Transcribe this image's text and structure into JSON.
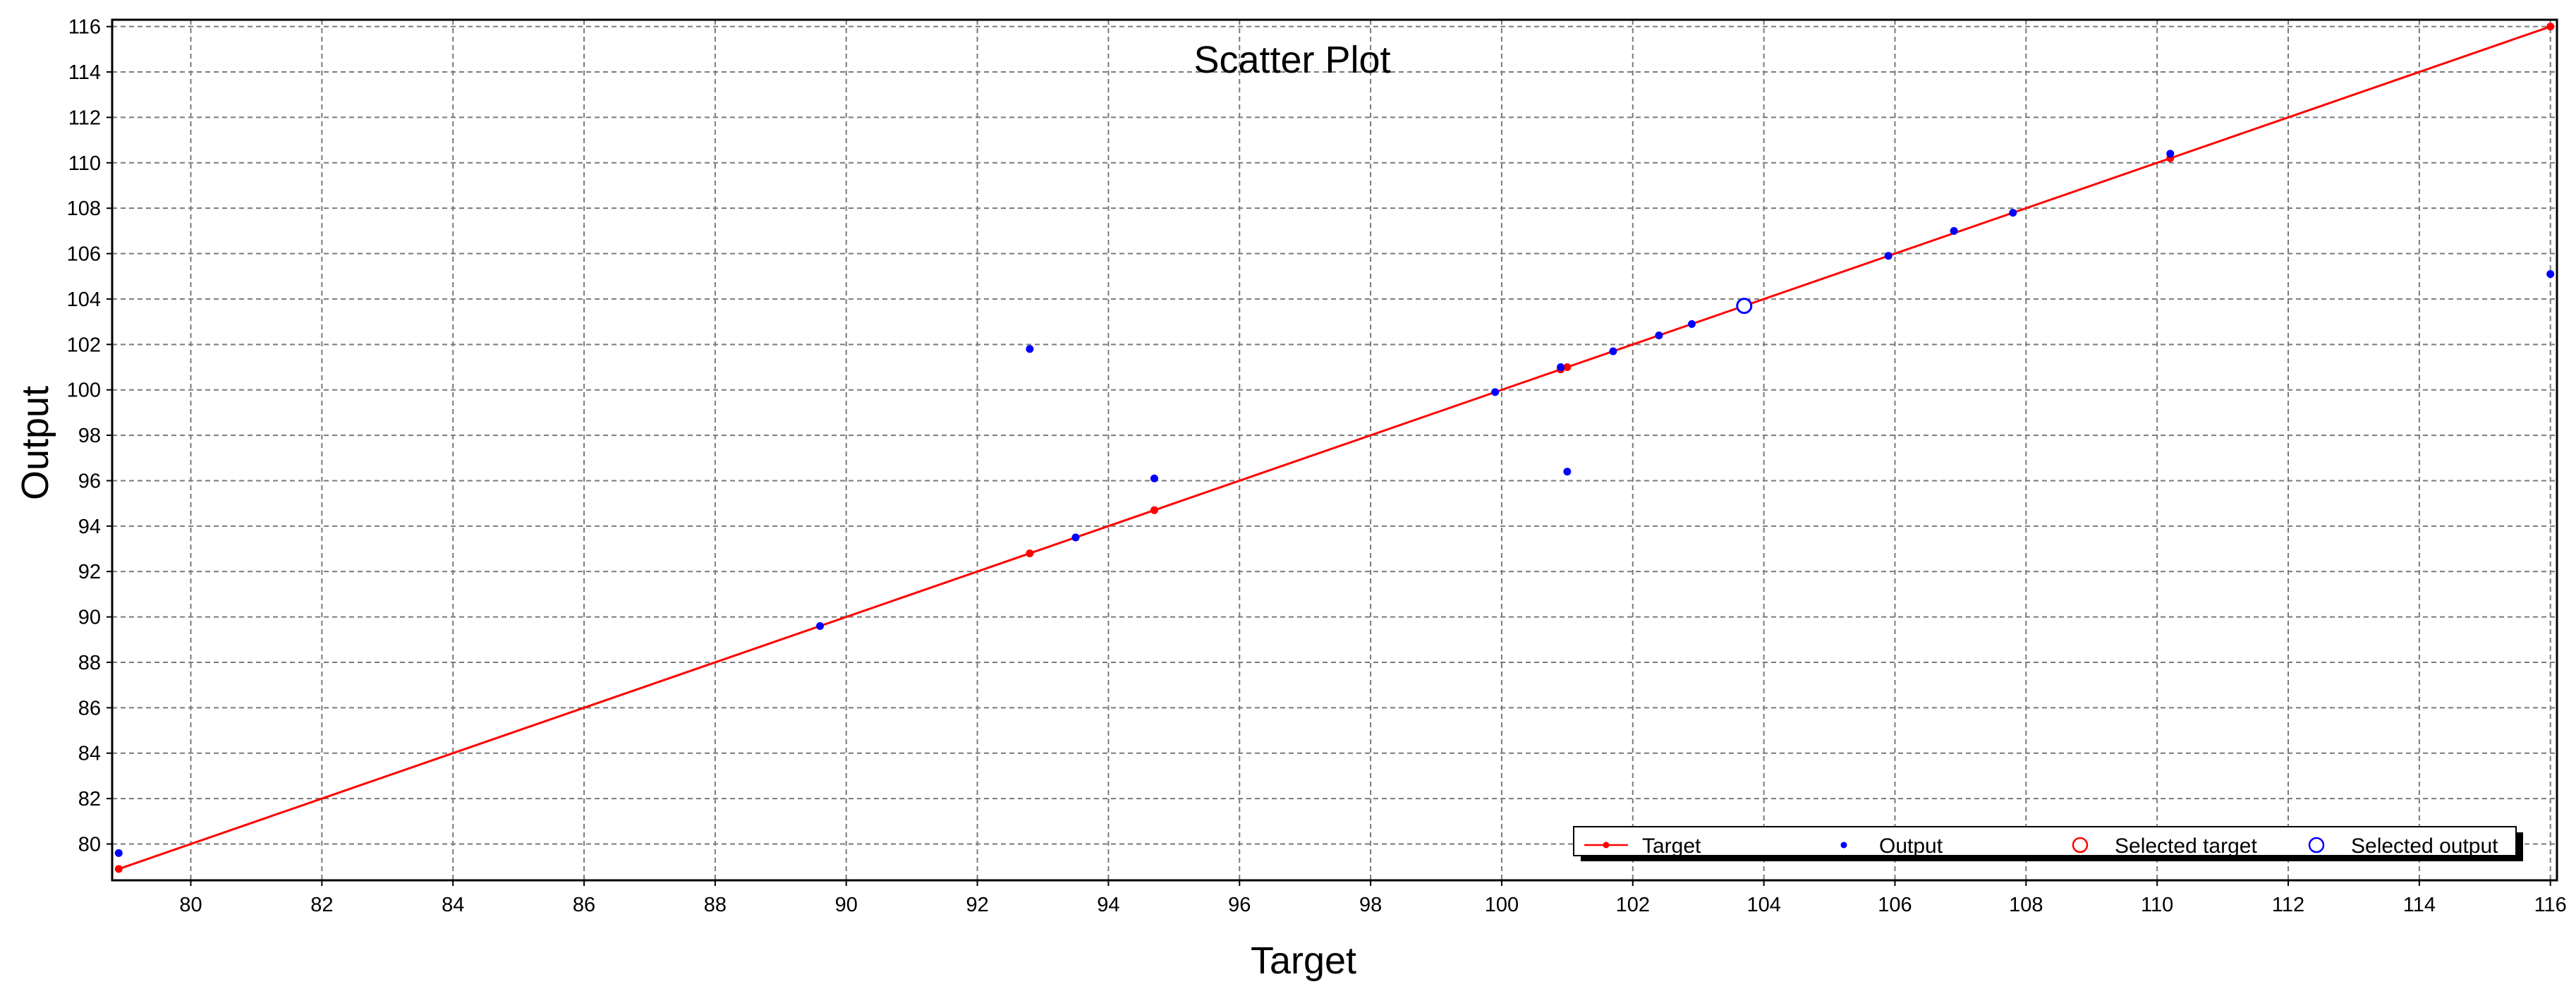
{
  "chart_data": {
    "type": "scatter",
    "title": "Scatter Plot",
    "xlabel": "Target",
    "ylabel": "Output",
    "xlim": [
      78.8,
      116.1
    ],
    "ylim": [
      78.4,
      116.3
    ],
    "x_ticks": [
      80,
      82,
      84,
      86,
      88,
      90,
      92,
      94,
      96,
      98,
      100,
      102,
      104,
      106,
      108,
      110,
      112,
      114,
      116
    ],
    "y_ticks": [
      80,
      82,
      84,
      86,
      88,
      90,
      92,
      94,
      96,
      98,
      100,
      102,
      104,
      106,
      108,
      110,
      112,
      114,
      116
    ],
    "grid": true,
    "legend_position": "bottom-right",
    "series": [
      {
        "name": "Target",
        "kind": "line",
        "color": "#ff0000",
        "x": [
          78.9,
          92.8,
          94.7,
          100.9,
          101.0,
          110.2,
          116.0
        ],
        "y": [
          78.9,
          92.8,
          94.7,
          100.9,
          101.0,
          110.2,
          116.0
        ]
      },
      {
        "name": "Output",
        "kind": "points",
        "color": "#0000ff",
        "x": [
          78.9,
          89.6,
          92.8,
          93.5,
          94.7,
          99.9,
          100.9,
          101.0,
          101.7,
          102.4,
          102.9,
          105.9,
          106.9,
          107.8,
          110.2,
          116.0
        ],
        "y": [
          79.6,
          89.6,
          101.8,
          93.5,
          96.1,
          99.9,
          101.0,
          96.4,
          101.7,
          102.4,
          102.9,
          105.9,
          107.0,
          107.8,
          110.4,
          105.1
        ]
      },
      {
        "name": "Selected target",
        "kind": "marker",
        "color": "#ff0000",
        "x": [],
        "y": []
      },
      {
        "name": "Selected output",
        "kind": "marker",
        "color": "#0000ff",
        "x": [
          103.7
        ],
        "y": [
          103.7
        ]
      }
    ]
  }
}
